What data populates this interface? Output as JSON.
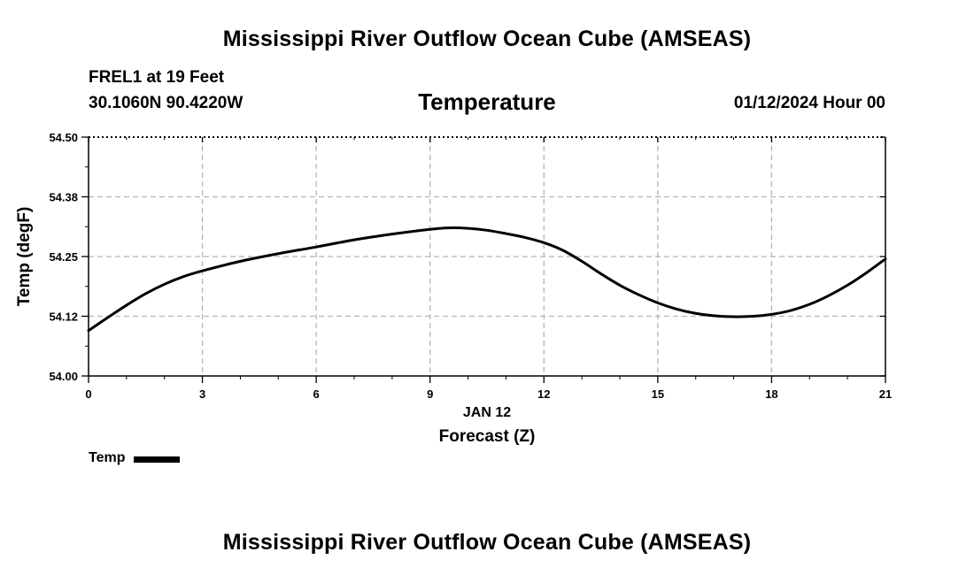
{
  "header": {
    "title_top": "Mississippi River Outflow Ocean Cube (AMSEAS)",
    "title_bottom": "Mississippi River Outflow Ocean Cube (AMSEAS)",
    "station_name": "FREL1 at 19 Feet",
    "station_coords": "30.1060N  90.4220W",
    "datetime": "01/12/2024 Hour 00"
  },
  "chart_data": {
    "type": "line",
    "title": "Temperature",
    "xlabel": "Forecast (Z)",
    "xlabel_date": "JAN 12",
    "ylabel": "Temp (degF)",
    "xlim": [
      0,
      21
    ],
    "ylim": [
      54.0,
      54.5
    ],
    "x_ticks": [
      0,
      3,
      6,
      9,
      12,
      15,
      18,
      21
    ],
    "x_tick_labels": [
      "0",
      "3",
      "6",
      "9",
      "12",
      "15",
      "18",
      "21"
    ],
    "y_ticks": [
      54.0,
      54.125,
      54.25,
      54.375,
      54.5
    ],
    "y_tick_labels": [
      "54.00",
      "54.12",
      "54.25",
      "54.38",
      "54.50"
    ],
    "grid": true,
    "legend_position": "bottom-left",
    "series": [
      {
        "name": "Temp",
        "color": "#000000",
        "x": [
          0,
          0.5,
          1,
          1.5,
          2,
          2.5,
          3,
          4,
          5,
          6,
          7,
          8,
          9,
          9.5,
          10,
          10.5,
          11,
          11.5,
          12,
          12.5,
          13,
          13.5,
          14,
          14.5,
          15,
          15.5,
          16,
          16.5,
          17,
          17.5,
          18,
          18.5,
          19,
          19.5,
          20,
          20.5,
          21
        ],
        "values": [
          54.095,
          54.122,
          54.148,
          54.172,
          54.192,
          54.208,
          54.22,
          54.24,
          54.256,
          54.27,
          54.285,
          54.297,
          54.307,
          54.31,
          54.309,
          54.305,
          54.298,
          54.29,
          54.279,
          54.263,
          54.24,
          54.214,
          54.19,
          54.17,
          54.153,
          54.14,
          54.131,
          54.126,
          54.124,
          54.125,
          54.129,
          54.137,
          54.15,
          54.168,
          54.19,
          54.216,
          54.245
        ]
      }
    ]
  },
  "legend": {
    "label": "Temp"
  }
}
